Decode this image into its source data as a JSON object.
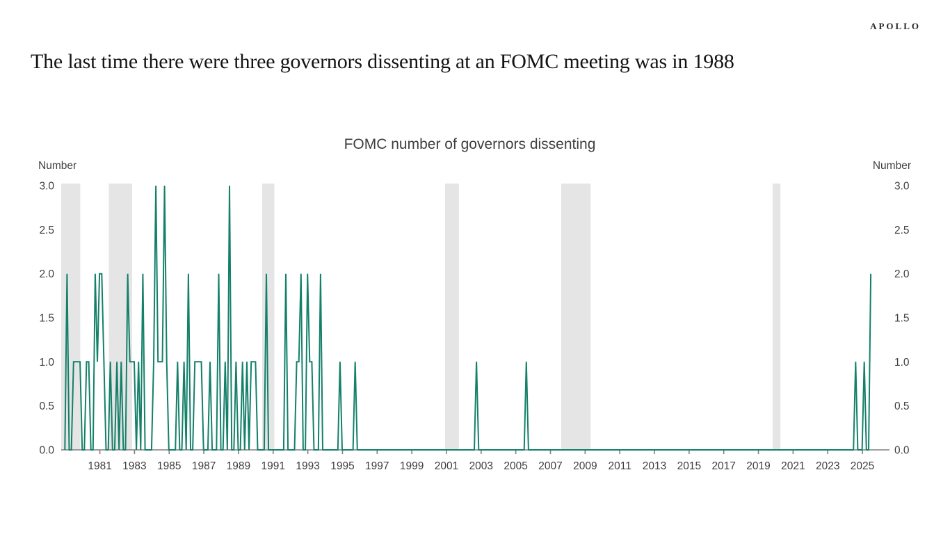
{
  "branding": {
    "logo_text": "APOLLO"
  },
  "page_title": "The last time there were three governors dissenting at an FOMC meeting was in 1988",
  "chart_data": {
    "type": "line",
    "title": "FOMC number of governors dissenting",
    "ylabel_left": "Number",
    "ylabel_right": "Number",
    "ylim": [
      0.0,
      3.0
    ],
    "y_ticks": [
      3.0,
      2.5,
      2.0,
      1.5,
      1.0,
      0.5,
      0.0
    ],
    "x_ticks": [
      1981,
      1983,
      1985,
      1987,
      1989,
      1991,
      1993,
      1995,
      1997,
      1999,
      2001,
      2003,
      2005,
      2007,
      2009,
      2011,
      2013,
      2015,
      2017,
      2019,
      2021,
      2023,
      2025
    ],
    "xlim": [
      1978.85,
      2026.0
    ],
    "grid": false,
    "legend": "none",
    "line_color": "#14806a",
    "recession_band_color": "#e5e5e5",
    "axis_color": "#7f7f7f",
    "recession_bands": [
      {
        "from": 1978.85,
        "to": 1979.95
      },
      {
        "from": 1981.6,
        "to": 1982.94
      },
      {
        "from": 1990.45,
        "to": 1991.15
      },
      {
        "from": 2001.0,
        "to": 2001.8
      },
      {
        "from": 2007.7,
        "to": 2009.4
      },
      {
        "from": 2019.9,
        "to": 2020.35
      }
    ],
    "series": {
      "name": "FOMC number of governors dissenting",
      "unit": "number of dissenting governors per FOMC meeting",
      "start_year": 1979,
      "meetings_per_year": 8,
      "n_points": 373,
      "default_value": 0,
      "nonzero_by_index": {
        "1": 2,
        "4": 1,
        "5": 1,
        "6": 1,
        "7": 1,
        "10": 1,
        "11": 1,
        "14": 2,
        "15": 1,
        "16": 2,
        "17": 2,
        "18": 1,
        "21": 1,
        "24": 1,
        "26": 1,
        "29": 2,
        "30": 1,
        "31": 1,
        "32": 1,
        "34": 1,
        "36": 2,
        "41": 1,
        "42": 3,
        "43": 1,
        "44": 1,
        "45": 1,
        "46": 3,
        "47": 1,
        "52": 1,
        "55": 1,
        "57": 2,
        "60": 1,
        "61": 1,
        "62": 1,
        "63": 1,
        "67": 1,
        "71": 2,
        "74": 1,
        "76": 3,
        "79": 1,
        "82": 1,
        "84": 1,
        "86": 1,
        "87": 1,
        "88": 1,
        "93": 2,
        "102": 2,
        "107": 1,
        "108": 1,
        "109": 2,
        "112": 2,
        "113": 1,
        "114": 1,
        "118": 2,
        "127": 1,
        "134": 1,
        "190": 1,
        "213": 1,
        "365": 1,
        "369": 1,
        "372": 2
      }
    }
  }
}
